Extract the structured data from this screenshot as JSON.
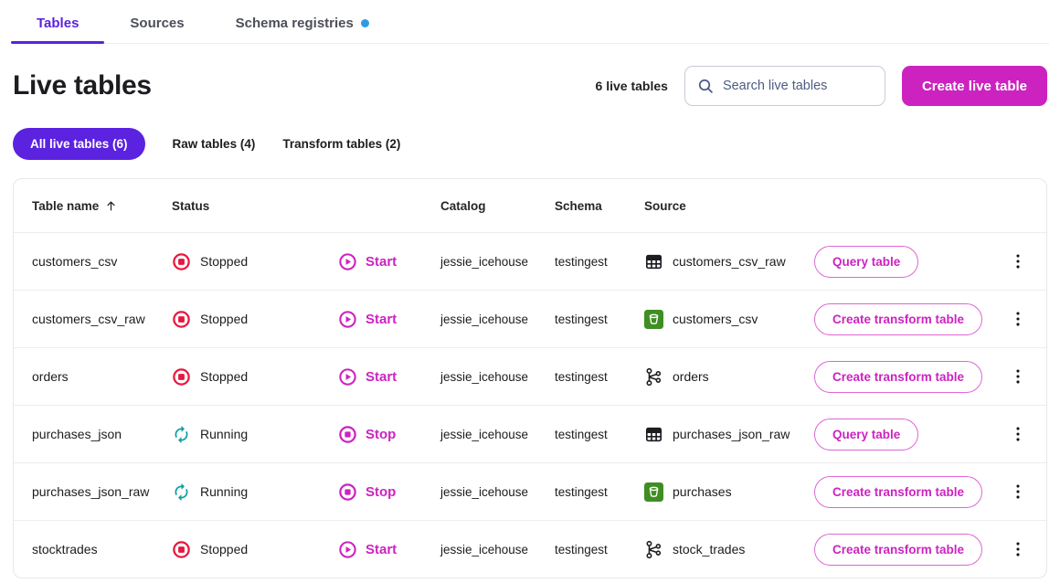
{
  "tabs": [
    {
      "label": "Tables",
      "active": true,
      "notification_dot": false
    },
    {
      "label": "Sources",
      "active": false,
      "notification_dot": false
    },
    {
      "label": "Schema registries",
      "active": false,
      "notification_dot": true
    }
  ],
  "header": {
    "title": "Live tables",
    "count_label": "6 live tables",
    "search_placeholder": "Search live tables",
    "create_button_label": "Create live table"
  },
  "filters": [
    {
      "label": "All live tables (6)",
      "active": true
    },
    {
      "label": "Raw tables (4)",
      "active": false
    },
    {
      "label": "Transform tables (2)",
      "active": false
    }
  ],
  "table": {
    "columns": {
      "table_name": "Table name",
      "status": "Status",
      "catalog": "Catalog",
      "schema": "Schema",
      "source": "Source"
    },
    "sort": {
      "column": "Table name",
      "direction": "ascending"
    },
    "rows": [
      {
        "name": "customers_csv",
        "status": "Stopped",
        "status_icon": "stopped-icon",
        "action": "Start",
        "action_icon": "play-icon",
        "catalog": "jessie_icehouse",
        "schema": "testingest",
        "source": "customers_csv_raw",
        "source_icon": "table-icon",
        "button": "Query table"
      },
      {
        "name": "customers_csv_raw",
        "status": "Stopped",
        "status_icon": "stopped-icon",
        "action": "Start",
        "action_icon": "play-icon",
        "catalog": "jessie_icehouse",
        "schema": "testingest",
        "source": "customers_csv",
        "source_icon": "bucket-icon",
        "button": "Create transform table"
      },
      {
        "name": "orders",
        "status": "Stopped",
        "status_icon": "stopped-icon",
        "action": "Start",
        "action_icon": "play-icon",
        "catalog": "jessie_icehouse",
        "schema": "testingest",
        "source": "orders",
        "source_icon": "kafka-icon",
        "button": "Create transform table"
      },
      {
        "name": "purchases_json",
        "status": "Running",
        "status_icon": "running-icon",
        "action": "Stop",
        "action_icon": "stop-icon",
        "catalog": "jessie_icehouse",
        "schema": "testingest",
        "source": "purchases_json_raw",
        "source_icon": "table-icon",
        "button": "Query table"
      },
      {
        "name": "purchases_json_raw",
        "status": "Running",
        "status_icon": "running-icon",
        "action": "Stop",
        "action_icon": "stop-icon",
        "catalog": "jessie_icehouse",
        "schema": "testingest",
        "source": "purchases",
        "source_icon": "bucket-icon",
        "button": "Create transform table"
      },
      {
        "name": "stocktrades",
        "status": "Stopped",
        "status_icon": "stopped-icon",
        "action": "Start",
        "action_icon": "play-icon",
        "catalog": "jessie_icehouse",
        "schema": "testingest",
        "source": "stock_trades",
        "source_icon": "kafka-icon",
        "button": "Create transform table"
      }
    ]
  },
  "colors": {
    "accent_purple": "#5B22E0",
    "magenta": "#CC23C0",
    "stopped_red": "#E8173D",
    "running_teal": "#109FA6",
    "notification_blue": "#2E9BE6",
    "bucket_green": "#3F8E24"
  }
}
